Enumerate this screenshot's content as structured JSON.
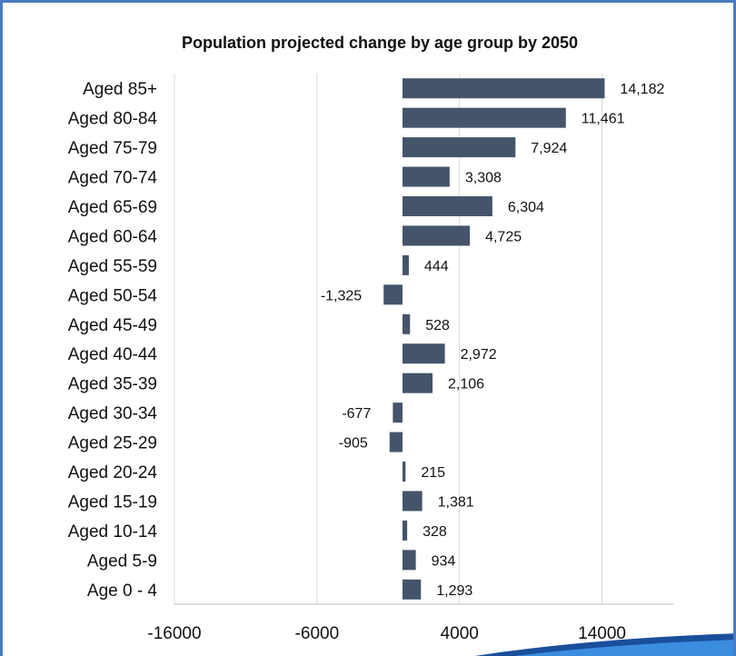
{
  "chart_data": {
    "type": "bar",
    "orientation": "horizontal",
    "title": "Population projected change by age group by 2050",
    "categories": [
      "Aged 85+",
      "Aged 80-84",
      "Aged 75-79",
      "Aged 70-74",
      "Aged 65-69",
      "Aged 60-64",
      "Aged 55-59",
      "Aged 50-54",
      "Aged 45-49",
      "Aged 40-44",
      "Aged 35-39",
      "Aged 30-34",
      "Aged 25-29",
      "Aged 20-24",
      "Aged 15-19",
      "Aged 10-14",
      "Aged 5-9",
      "Age 0 - 4"
    ],
    "values": [
      14182,
      11461,
      7924,
      3308,
      6304,
      4725,
      444,
      -1325,
      528,
      2972,
      2106,
      -677,
      -905,
      215,
      1381,
      328,
      934,
      1293
    ],
    "data_labels": [
      "14,182",
      "11,461",
      "7,924",
      "3,308",
      "6,304",
      "4,725",
      "444",
      "-1,325",
      "528",
      "2,972",
      "2,106",
      "-677",
      "-905",
      "215",
      "1,381",
      "328",
      "934",
      "1,293"
    ],
    "xticks": [
      -16000,
      -6000,
      4000,
      14000
    ],
    "xlim": [
      -16000,
      19000
    ],
    "xlabel": "",
    "ylabel": "",
    "grid": "vertical",
    "legend": "none",
    "bar_color": "#44546a",
    "grid_color": "#d9d9d9",
    "border_color": "#4a7abf",
    "accent_color": "#1f78c8"
  }
}
